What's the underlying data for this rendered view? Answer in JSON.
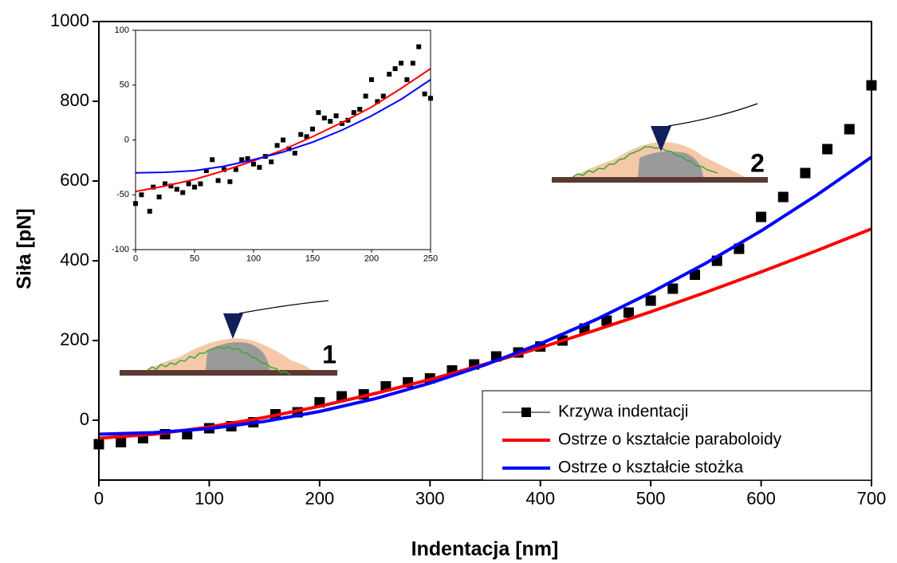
{
  "chart_data": [
    {
      "type": "scatter",
      "xlabel": "Indentacja [nm]",
      "ylabel": "Siła [pN]",
      "xlim": [
        0,
        700
      ],
      "ylim": [
        -150,
        1000
      ],
      "xticks": [
        0,
        100,
        200,
        300,
        400,
        500,
        600,
        700
      ],
      "yticks": [
        0,
        200,
        400,
        600,
        800,
        1000
      ],
      "legend": "lower right",
      "annotations": [
        "1",
        "2"
      ],
      "series": [
        {
          "name": "Krzywa indentacji",
          "kind": "points",
          "color": "#000000",
          "x": [
            0,
            20,
            40,
            60,
            80,
            100,
            120,
            140,
            160,
            180,
            200,
            220,
            240,
            260,
            280,
            300,
            320,
            340,
            360,
            380,
            400,
            420,
            440,
            460,
            480,
            500,
            520,
            540,
            560,
            580,
            600,
            620,
            640,
            660,
            680,
            700
          ],
          "values": [
            -60,
            -55,
            -45,
            -35,
            -35,
            -20,
            -15,
            -5,
            15,
            20,
            45,
            60,
            65,
            85,
            95,
            105,
            125,
            140,
            160,
            170,
            185,
            200,
            230,
            250,
            270,
            300,
            330,
            365,
            400,
            430,
            510,
            560,
            620,
            680,
            730,
            840
          ]
        },
        {
          "name": "Ostrze o kształcie paraboloidy",
          "kind": "line",
          "color": "#ff0000",
          "x": [
            0,
            50,
            100,
            150,
            200,
            250,
            300,
            350,
            400,
            450,
            500,
            550,
            600,
            650,
            700
          ],
          "values": [
            -45,
            -35,
            -17,
            7,
            35,
            67,
            102,
            141,
            182,
            226,
            272,
            321,
            372,
            425,
            480
          ]
        },
        {
          "name": "Ostrze o kształcie stożka",
          "kind": "line",
          "color": "#0000ff",
          "x": [
            0,
            50,
            100,
            150,
            200,
            250,
            300,
            350,
            400,
            450,
            500,
            550,
            600,
            650,
            700
          ],
          "values": [
            -35,
            -31,
            -21,
            -3,
            22,
            54,
            93,
            139,
            192,
            252,
            320,
            394,
            475,
            564,
            660
          ]
        }
      ]
    },
    {
      "type": "scatter",
      "xlim": [
        0,
        250
      ],
      "ylim": [
        -100,
        100
      ],
      "xticks": [
        0,
        50,
        100,
        150,
        200,
        250
      ],
      "yticks": [
        -100,
        -50,
        0,
        50,
        100
      ],
      "series": [
        {
          "kind": "points",
          "color": "#000000",
          "x": [
            0,
            5,
            12,
            15,
            20,
            25,
            30,
            35,
            40,
            45,
            50,
            55,
            60,
            65,
            70,
            75,
            80,
            85,
            90,
            95,
            100,
            105,
            110,
            115,
            120,
            125,
            130,
            135,
            140,
            145,
            150,
            155,
            160,
            165,
            170,
            175,
            180,
            185,
            190,
            195,
            200,
            205,
            210,
            215,
            220,
            225,
            230,
            235,
            240,
            245,
            250
          ],
          "values": [
            -58,
            -50,
            -65,
            -43,
            -52,
            -40,
            -42,
            -45,
            -48,
            -40,
            -43,
            -40,
            -28,
            -18,
            -37,
            -27,
            -38,
            -27,
            -18,
            -17,
            -22,
            -25,
            -15,
            -20,
            -5,
            0,
            -8,
            -12,
            5,
            3,
            10,
            25,
            20,
            17,
            22,
            15,
            18,
            25,
            28,
            40,
            55,
            35,
            40,
            60,
            65,
            70,
            55,
            70,
            85,
            42,
            38
          ]
        },
        {
          "kind": "line",
          "color": "#ff0000",
          "x": [
            0,
            25,
            50,
            75,
            100,
            125,
            150,
            175,
            200,
            225,
            250
          ],
          "values": [
            -47,
            -42,
            -36,
            -28,
            -19,
            -9,
            3,
            16,
            30,
            47,
            65
          ]
        },
        {
          "kind": "line",
          "color": "#0000ff",
          "x": [
            0,
            25,
            50,
            75,
            100,
            125,
            150,
            175,
            200,
            225,
            250
          ],
          "values": [
            -30,
            -29.5,
            -28,
            -24,
            -18,
            -11,
            -2,
            9,
            22,
            37,
            55
          ]
        }
      ]
    }
  ]
}
